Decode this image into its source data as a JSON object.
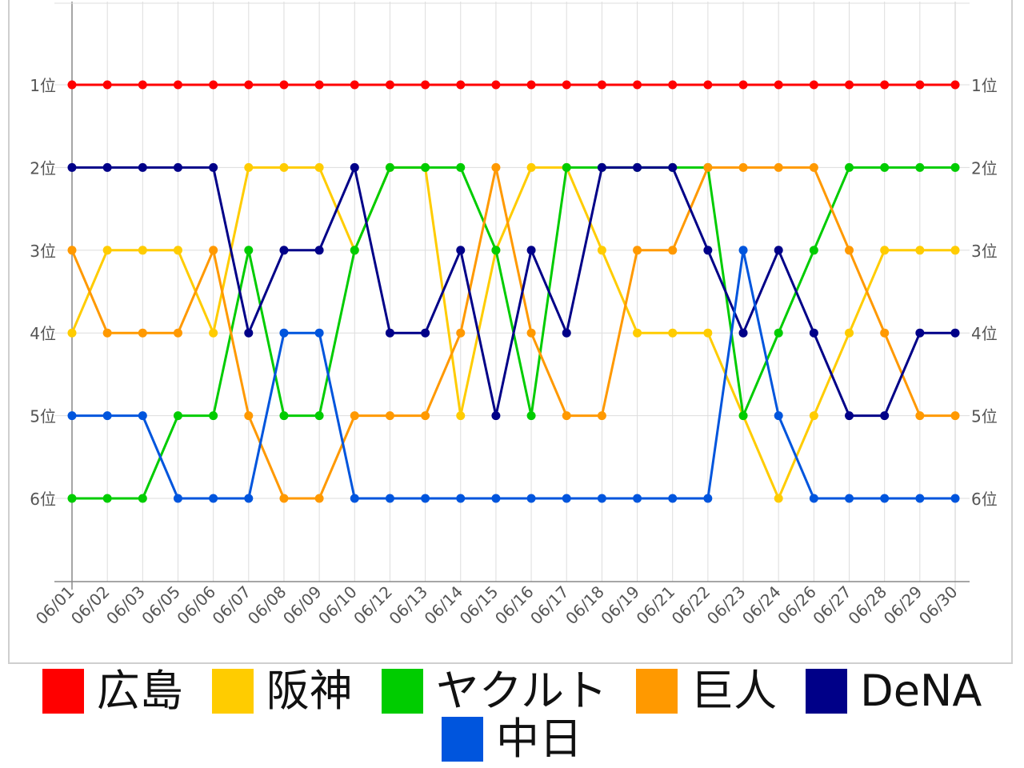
{
  "chart_data": {
    "type": "line",
    "categories": [
      "06/01",
      "06/02",
      "06/03",
      "06/05",
      "06/06",
      "06/07",
      "06/08",
      "06/09",
      "06/10",
      "06/12",
      "06/13",
      "06/14",
      "06/15",
      "06/16",
      "06/17",
      "06/18",
      "06/19",
      "06/21",
      "06/22",
      "06/23",
      "06/24",
      "06/26",
      "06/27",
      "06/28",
      "06/29",
      "06/30"
    ],
    "y_ticks": [
      "1位",
      "2位",
      "3位",
      "4位",
      "5位",
      "6位"
    ],
    "ylim": [
      0,
      7
    ],
    "y_inverted": true,
    "grid": true,
    "legend_position": "bottom",
    "series": [
      {
        "name": "広島",
        "color": "#ff0000",
        "values": [
          1,
          1,
          1,
          1,
          1,
          1,
          1,
          1,
          1,
          1,
          1,
          1,
          1,
          1,
          1,
          1,
          1,
          1,
          1,
          1,
          1,
          1,
          1,
          1,
          1,
          1
        ]
      },
      {
        "name": "阪神",
        "color": "#ffcc00",
        "values": [
          4,
          3,
          3,
          3,
          4,
          2,
          2,
          2,
          3,
          2,
          2,
          5,
          3,
          2,
          2,
          3,
          4,
          4,
          4,
          5,
          6,
          5,
          4,
          3,
          3,
          3
        ]
      },
      {
        "name": "ヤクルト",
        "color": "#00cc00",
        "values": [
          6,
          6,
          6,
          5,
          5,
          3,
          5,
          5,
          3,
          2,
          2,
          2,
          3,
          5,
          2,
          2,
          2,
          2,
          2,
          5,
          4,
          3,
          2,
          2,
          2,
          2
        ]
      },
      {
        "name": "巨人",
        "color": "#ff9900",
        "values": [
          3,
          4,
          4,
          4,
          3,
          5,
          6,
          6,
          5,
          5,
          5,
          4,
          2,
          4,
          5,
          5,
          3,
          3,
          2,
          2,
          2,
          2,
          3,
          4,
          5,
          5
        ]
      },
      {
        "name": "DeNA",
        "color": "#000088",
        "values": [
          2,
          2,
          2,
          2,
          2,
          4,
          3,
          3,
          2,
          4,
          4,
          3,
          5,
          3,
          4,
          2,
          2,
          2,
          3,
          4,
          3,
          4,
          5,
          5,
          4,
          4
        ]
      },
      {
        "name": "中日",
        "color": "#0055dd",
        "values": [
          5,
          5,
          5,
          6,
          6,
          6,
          4,
          4,
          6,
          6,
          6,
          6,
          6,
          6,
          6,
          6,
          6,
          6,
          6,
          3,
          5,
          6,
          6,
          6,
          6,
          6
        ]
      }
    ]
  }
}
